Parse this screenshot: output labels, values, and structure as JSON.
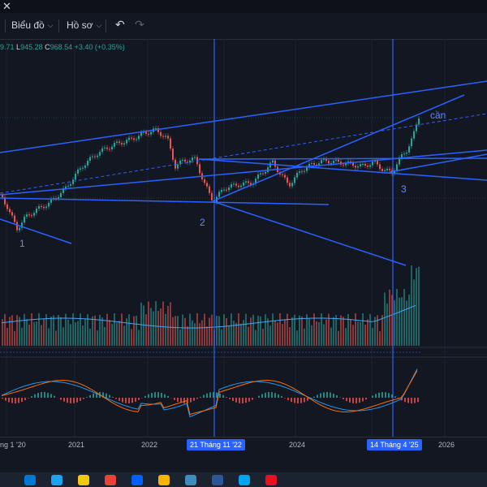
{
  "window": {
    "close_symbol": "✕"
  },
  "toolbar": {
    "chart_menu": "Biểu đồ",
    "profile_menu": "Hồ sơ",
    "undo_icon": "↶",
    "redo_icon": "↷"
  },
  "ohlc": {
    "open_value": "9.71",
    "low_label": "L",
    "low_value": "945.28",
    "close_label": "C",
    "close_value": "968.54",
    "change": "+3.40 (+0.35%)"
  },
  "annotations": {
    "point1": "1",
    "point2": "2",
    "point3": "3",
    "note": "cần"
  },
  "xaxis": {
    "labels": [
      "ng 1 '20",
      "2021",
      "2022",
      "2024",
      "2026"
    ],
    "badge_left": "21 Tháng 11 '22",
    "badge_right": "14 Tháng 4 '25"
  },
  "colors": {
    "background": "#131722",
    "up": "#26a69a",
    "down": "#ef5350",
    "trendline": "#2962ff",
    "macd": "#2196f3",
    "signal": "#ff6d00"
  },
  "taskbar": {
    "icons": [
      "start-icon",
      "edge-icon",
      "explorer-icon",
      "chrome-icon",
      "dropbox-icon",
      "folder-icon",
      "app-icon",
      "app-icon-2",
      "app-icon-3",
      "app-icon-4"
    ]
  }
}
